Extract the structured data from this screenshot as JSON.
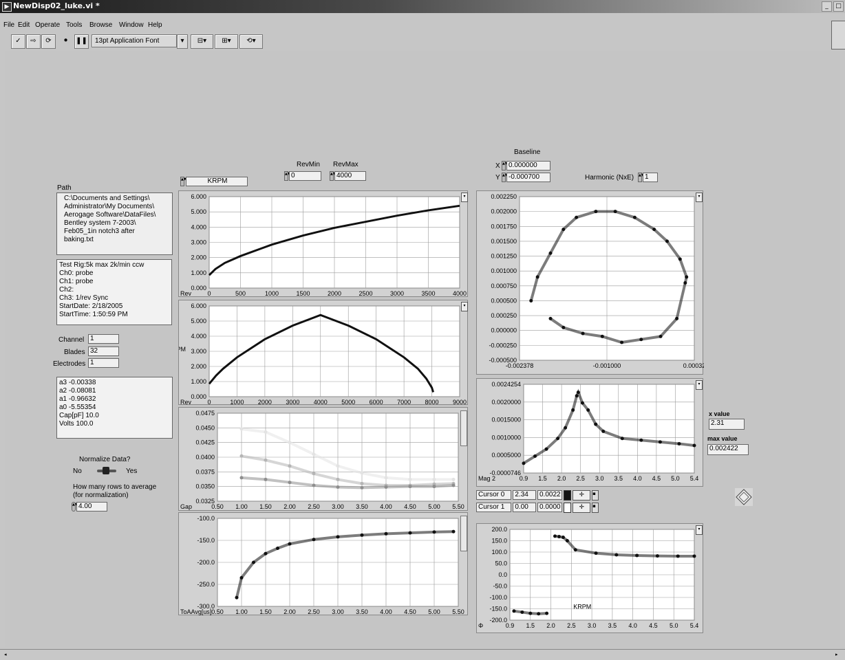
{
  "window": {
    "title": "NewDisp02_luke.vi *"
  },
  "menu": [
    "File",
    "Edit",
    "Operate",
    "Tools",
    "Browse",
    "Window",
    "Help"
  ],
  "toolbar": {
    "font": "13pt Application Font"
  },
  "top_controls": {
    "krpm_selector": "KRPM",
    "revmin_label": "RevMin",
    "revmin": "0",
    "revmax_label": "RevMax",
    "revmax": "4000",
    "baseline_label": "Baseline",
    "x_label": "X",
    "x_value": "0.000000",
    "y_label": "Y",
    "y_value": "-0.000700",
    "harmonic_label": "Harmonic (NxE)",
    "harmonic_value": "1"
  },
  "left_panel": {
    "path_label": "Path",
    "path_lines": [
      "C:\\Documents and Settings\\",
      "Administrator\\My Documents\\",
      "Aerogage Software\\DataFiles\\",
      "Bentley system 7-2003\\",
      "Feb05_1in notch3 after",
      "baking.txt"
    ],
    "info_lines": [
      "Test Rig:5k max 2k/min ccw",
      "Ch0: probe",
      "Ch1: probe",
      "Ch2:",
      "Ch3: 1/rev Sync",
      "StartDate: 2/18/2005",
      "StartTime: 1:50:59 PM"
    ],
    "channel_label": "Channel",
    "channel": "1",
    "blades_label": "Blades",
    "blades": "32",
    "electrodes_label": "Electrodes",
    "electrodes": "1",
    "coef_lines": [
      "a3 -0.00338",
      "a2 -0.08081",
      "a1 -0.96632",
      "a0 -5.55354",
      "Cap[pF] 10.0",
      "Volts 100.0"
    ],
    "normalize_label": "Normalize Data?",
    "no": "No",
    "yes": "Yes",
    "rows_label_1": "How many rows to average",
    "rows_label_2": "(for normalization)",
    "rows_value": "4.00"
  },
  "right_panel": {
    "x_value_label": "x value",
    "x_value": "2.31",
    "max_value_label": "max value",
    "max_value": "0.002422",
    "cursor0": {
      "name": "Cursor 0",
      "x": "2.34",
      "y": "0.0022"
    },
    "cursor1": {
      "name": "Cursor 1",
      "x": "0.00",
      "y": "0.0000"
    }
  },
  "chart_data": [
    {
      "type": "line",
      "id": "g1",
      "xlabel": "Rev",
      "ylabel": "",
      "xticks": [
        "0",
        "500",
        "1000",
        "1500",
        "2000",
        "2500",
        "3000",
        "3500",
        "4000"
      ],
      "yticks": [
        "0.000",
        "1.000",
        "2.000",
        "3.000",
        "4.000",
        "5.000",
        "6.000"
      ],
      "xlim": [
        0,
        4000
      ],
      "ylim": [
        0,
        6
      ],
      "series": [
        {
          "x": [
            0,
            100,
            250,
            500,
            1000,
            1500,
            2000,
            2500,
            3000,
            3500,
            4000
          ],
          "y": [
            0.85,
            1.25,
            1.65,
            2.1,
            2.85,
            3.45,
            3.95,
            4.35,
            4.75,
            5.1,
            5.4
          ]
        }
      ]
    },
    {
      "type": "line",
      "id": "g2",
      "xlabel": "Rev",
      "ylabel": "KRPM",
      "xticks": [
        "0",
        "1000",
        "2000",
        "3000",
        "4000",
        "5000",
        "6000",
        "7000",
        "8000",
        "9000"
      ],
      "yticks": [
        "0.000",
        "1.000",
        "2.000",
        "3.000",
        "4.000",
        "5.000",
        "6.000"
      ],
      "xlim": [
        0,
        9000
      ],
      "ylim": [
        0,
        6
      ],
      "series": [
        {
          "x": [
            0,
            250,
            500,
            1000,
            2000,
            3000,
            4000,
            5000,
            6000,
            7000,
            7500,
            7800,
            8000,
            8050
          ],
          "y": [
            0.85,
            1.4,
            1.85,
            2.6,
            3.8,
            4.7,
            5.4,
            4.7,
            3.8,
            2.6,
            1.85,
            1.2,
            0.6,
            0.3
          ]
        }
      ]
    },
    {
      "type": "scatter",
      "id": "g3",
      "xlabel": "Gap",
      "xticks": [
        "0.50",
        "1.00",
        "1.50",
        "2.00",
        "2.50",
        "3.00",
        "3.50",
        "4.00",
        "4.50",
        "5.00",
        "5.50"
      ],
      "yticks": [
        "0.0325",
        "0.0350",
        "0.0375",
        "0.0400",
        "0.0425",
        "0.0450",
        "0.0475"
      ],
      "xlim": [
        0.5,
        5.5
      ],
      "ylim": [
        0.0325,
        0.0475
      ],
      "series": [
        {
          "name": "",
          "x": [
            1,
            1.5,
            2,
            2.5,
            3,
            3.5,
            4,
            4.5,
            5,
            5.4
          ],
          "y": [
            0.0448,
            0.0443,
            0.0425,
            0.0405,
            0.0385,
            0.0373,
            0.0365,
            0.0362,
            0.0362,
            0.0362
          ],
          "color": "#e3e3e3"
        },
        {
          "name": "",
          "x": [
            1,
            1.5,
            2,
            2.5,
            3,
            3.5,
            4,
            4.5,
            5,
            5.4
          ],
          "y": [
            0.0402,
            0.0395,
            0.0385,
            0.0372,
            0.0362,
            0.0355,
            0.0352,
            0.0352,
            0.0354,
            0.0355
          ],
          "color": "#b5b5b5"
        },
        {
          "name": "",
          "x": [
            1,
            1.5,
            2,
            2.5,
            3,
            3.5,
            4,
            4.5,
            5,
            5.4
          ],
          "y": [
            0.0365,
            0.0362,
            0.0357,
            0.0352,
            0.0349,
            0.0348,
            0.0349,
            0.035,
            0.035,
            0.0352
          ],
          "color": "#8e8e8e"
        }
      ]
    },
    {
      "type": "scatter",
      "id": "g4",
      "xlabel": "ToAAvg[us]",
      "xticks": [
        "0.50",
        "1.00",
        "1.50",
        "2.00",
        "2.50",
        "3.00",
        "3.50",
        "4.00",
        "4.50",
        "5.00",
        "5.50"
      ],
      "yticks": [
        "-300.0",
        "-250.0",
        "-200.0",
        "-150.0",
        "-100.0"
      ],
      "xlim": [
        0.5,
        5.5
      ],
      "ylim": [
        -300,
        -100
      ],
      "series": [
        {
          "x": [
            0.9,
            1,
            1.25,
            1.5,
            1.75,
            2,
            2.5,
            3,
            3.5,
            4,
            4.5,
            5,
            5.4
          ],
          "y": [
            -280,
            -235,
            -200,
            -180,
            -168,
            -158,
            -148,
            -142,
            -138,
            -135,
            -133,
            -131,
            -130
          ]
        }
      ]
    },
    {
      "type": "scatter",
      "id": "g5",
      "xlabel": "",
      "xticks": [
        "-0.002378",
        "-0.001000",
        "0.00032"
      ],
      "yticks": [
        "-0.000500",
        "-0.000250",
        "0.000000",
        "0.000250",
        "0.000500",
        "0.000750",
        "0.001000",
        "0.001250",
        "0.001500",
        "0.001750",
        "0.002000",
        "0.002250"
      ],
      "xlim": [
        -0.002378,
        0.00032
      ],
      "ylim": [
        -0.0005,
        0.00225
      ],
      "series": [
        {
          "x": [
            -0.0022,
            -0.0021,
            -0.0019,
            -0.0017,
            -0.0015,
            -0.0012,
            -0.0009,
            -0.0006,
            -0.0003,
            -0.0001,
            0.0001,
            0.0002,
            0.00018,
            5e-05,
            -0.0002,
            -0.0005,
            -0.0008,
            -0.0011,
            -0.0014,
            -0.0017,
            -0.0019
          ],
          "y": [
            0.0005,
            0.0009,
            0.0013,
            0.0017,
            0.0019,
            0.002,
            0.002,
            0.0019,
            0.0017,
            0.0015,
            0.0012,
            0.0009,
            0.0008,
            0.0002,
            -0.0001,
            -0.00015,
            -0.0002,
            -0.0001,
            -5e-05,
            5e-05,
            0.0002
          ]
        }
      ]
    },
    {
      "type": "scatter",
      "id": "g6",
      "xlabel": "Mag 2",
      "xticks": [
        "0.9",
        "1.5",
        "2.0",
        "2.5",
        "3.0",
        "3.5",
        "4.0",
        "4.5",
        "5.0",
        "5.4"
      ],
      "yticks": [
        "-0.0000746",
        "0.0005000",
        "0.0010000",
        "0.0015000",
        "0.0020000",
        "0.0024254"
      ],
      "xlim": [
        0.9,
        5.4
      ],
      "ylim": [
        -7.46e-05,
        0.0024254
      ],
      "series": [
        {
          "x": [
            0.9,
            1.2,
            1.5,
            1.8,
            2,
            2.2,
            2.3,
            2.34,
            2.45,
            2.6,
            2.8,
            3,
            3.5,
            4,
            4.5,
            5,
            5.4
          ],
          "y": [
            0.0002,
            0.0004,
            0.0006,
            0.0009,
            0.0012,
            0.0017,
            0.0021,
            0.0022,
            0.0019,
            0.0017,
            0.0013,
            0.0011,
            0.0009,
            0.00085,
            0.0008,
            0.00075,
            0.0007
          ]
        }
      ]
    },
    {
      "type": "scatter",
      "id": "g7",
      "xlabel": "Φ",
      "annotation": "KRPM",
      "xticks": [
        "0.9",
        "1.5",
        "2.0",
        "2.5",
        "3.0",
        "3.5",
        "4.0",
        "4.5",
        "5.0",
        "5.4"
      ],
      "yticks": [
        "-200.0",
        "-150.0",
        "-100.0",
        "-50.0",
        "0.0",
        "50.0",
        "100.0",
        "150.0",
        "200.0"
      ],
      "xlim": [
        0.9,
        5.4
      ],
      "ylim": [
        -200,
        200
      ],
      "series": [
        {
          "x": [
            2.0,
            2.1,
            2.2,
            2.3,
            2.5,
            3,
            3.5,
            4,
            4.5,
            5,
            5.4
          ],
          "y": [
            170,
            168,
            165,
            150,
            110,
            95,
            88,
            85,
            83,
            82,
            82
          ]
        },
        {
          "x": [
            1.0,
            1.2,
            1.4,
            1.6,
            1.8
          ],
          "y": [
            -160,
            -165,
            -170,
            -172,
            -170
          ]
        }
      ]
    }
  ]
}
